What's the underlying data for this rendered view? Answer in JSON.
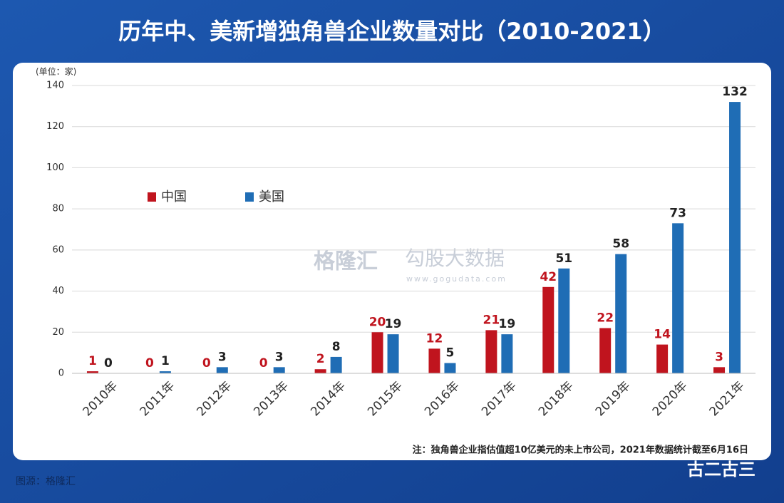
{
  "chart_data": {
    "type": "bar",
    "title": "历年中、美新增独角兽企业数量对比（2010-2021）",
    "unit_label": "(单位：家)",
    "categories": [
      "2010年",
      "2011年",
      "2012年",
      "2013年",
      "2014年",
      "2015年",
      "2016年",
      "2017年",
      "2018年",
      "2019年",
      "2020年",
      "2021年"
    ],
    "series": [
      {
        "name": "中国",
        "color": "#c0141e",
        "values": [
          1,
          0,
          0,
          0,
          2,
          20,
          12,
          21,
          42,
          22,
          14,
          3
        ]
      },
      {
        "name": "美国",
        "color": "#1f6db5",
        "values": [
          0,
          1,
          3,
          3,
          8,
          19,
          5,
          19,
          51,
          58,
          73,
          132
        ]
      }
    ],
    "ylim": [
      0,
      140
    ],
    "yticks": [
      0,
      20,
      40,
      60,
      80,
      100,
      120,
      140
    ],
    "grid": true,
    "note": "注：独角兽企业指估值超10亿美元的未上市公司，2021年数据统计截至6月16日",
    "watermarks": [
      "格隆汇",
      "勾股大数据",
      "www.gogudata.com"
    ],
    "source": "图源：格隆汇",
    "account": "古二古三"
  }
}
